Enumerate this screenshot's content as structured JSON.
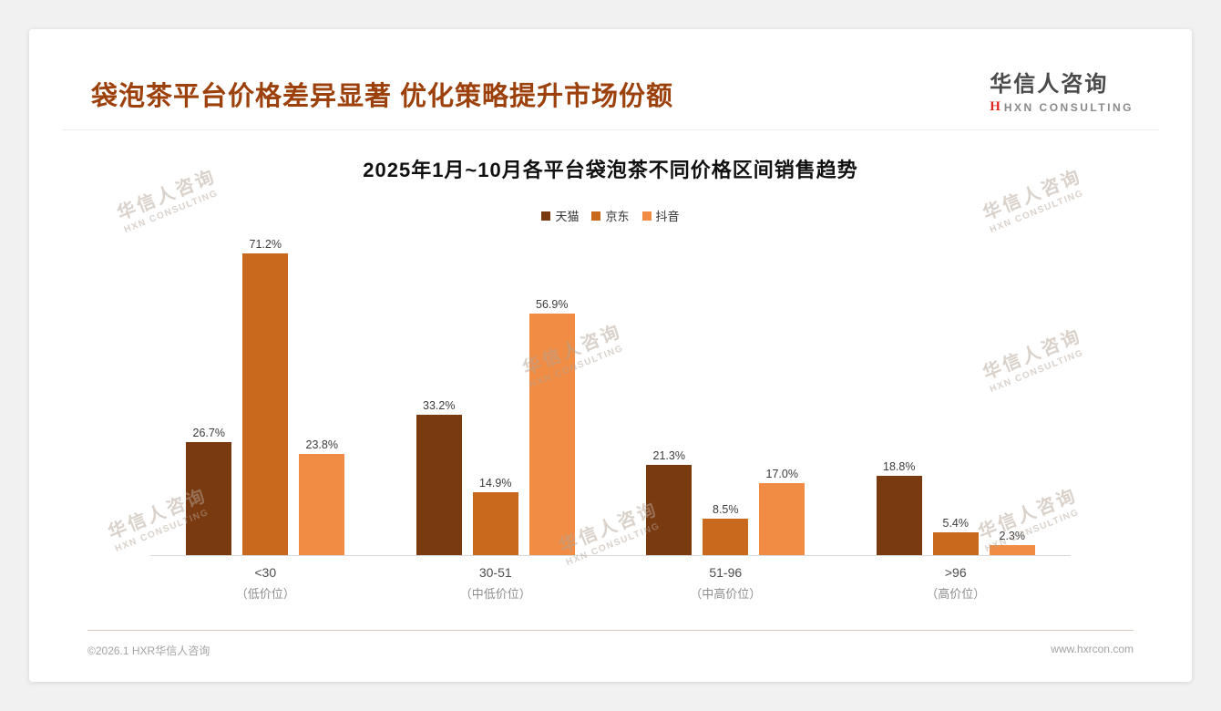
{
  "page": {
    "title": "袋泡茶平台价格差异显著 优化策略提升市场份额",
    "footer_left": "©2026.1 HXR华信人咨询",
    "footer_right": "www.hxrcon.com"
  },
  "logo": {
    "name_cn": "华信人咨询",
    "name_en": "HXN CONSULTING",
    "icon_letter": "H",
    "icon_color": "#e02621"
  },
  "watermark": {
    "line1": "华信人咨询",
    "line2": "HXN CONSULTING"
  },
  "chart_data": {
    "type": "bar",
    "title": "2025年1月~10月各平台袋泡茶不同价格区间销售趋势",
    "categories": [
      {
        "label": "<30",
        "sub": "（低价位）"
      },
      {
        "label": "30-51",
        "sub": "（中低价位）"
      },
      {
        "label": "51-96",
        "sub": "（中高价位）"
      },
      {
        "label": ">96",
        "sub": "（高价位）"
      }
    ],
    "series": [
      {
        "name": "天猫",
        "color": "#7a3a10",
        "values": [
          26.7,
          33.2,
          21.3,
          18.8
        ]
      },
      {
        "name": "京东",
        "color": "#c8691e",
        "values": [
          71.2,
          14.9,
          8.5,
          5.4
        ]
      },
      {
        "name": "抖音",
        "color": "#f08c44",
        "values": [
          23.8,
          56.9,
          17.0,
          2.3
        ]
      }
    ],
    "value_suffix": "%",
    "ylim": [
      0,
      75
    ],
    "grid": false,
    "legend_position": "top-center",
    "xlabel": "",
    "ylabel": ""
  }
}
